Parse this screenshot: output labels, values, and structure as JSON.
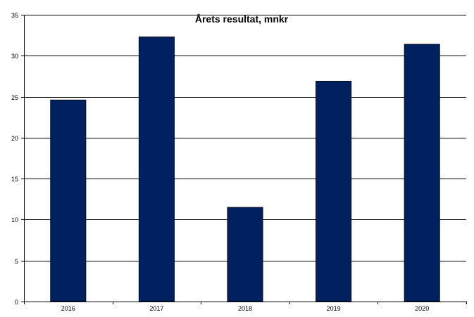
{
  "chart_data": {
    "type": "bar",
    "title": "Årets resultat, mnkr",
    "xlabel": "",
    "ylabel": "",
    "categories": [
      "2016",
      "2017",
      "2018",
      "2019",
      "2020"
    ],
    "values": [
      24.6,
      32.3,
      11.5,
      26.9,
      31.4
    ],
    "ylim": [
      0,
      35
    ],
    "yticks": [
      "0",
      "5",
      "10",
      "15",
      "20",
      "25",
      "30",
      "35"
    ],
    "grid": true,
    "legend": "none",
    "bar_color": "#002060"
  }
}
